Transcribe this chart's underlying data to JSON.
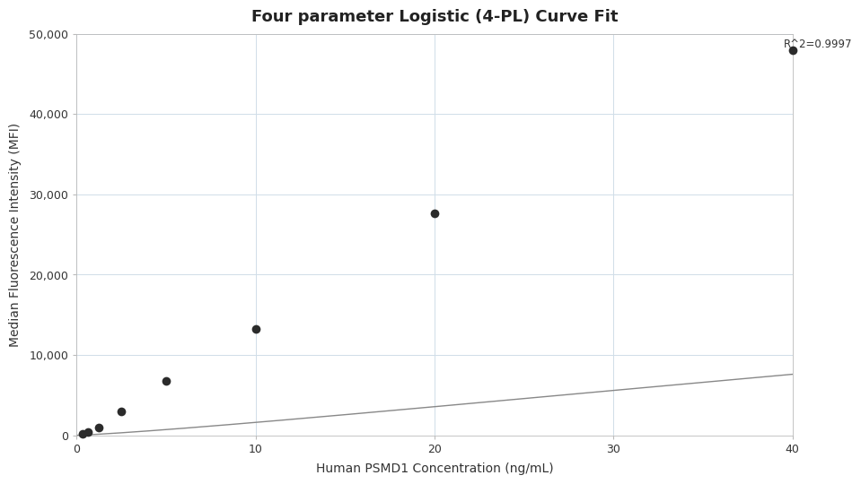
{
  "title": "Four parameter Logistic (4-PL) Curve Fit",
  "xlabel": "Human PSMD1 Concentration (ng/mL)",
  "ylabel": "Median Fluorescence Intensity (MFI)",
  "x_data": [
    0.313,
    0.625,
    1.25,
    2.5,
    5.0,
    10.0,
    20.0,
    40.0
  ],
  "y_data": [
    150,
    450,
    950,
    3000,
    6800,
    13200,
    27600,
    48000
  ],
  "r_squared": "R^2=0.9997",
  "xlim": [
    0,
    40
  ],
  "ylim": [
    0,
    50000
  ],
  "xticks": [
    0,
    10,
    20,
    30,
    40
  ],
  "yticks": [
    0,
    10000,
    20000,
    30000,
    40000,
    50000
  ],
  "marker_color": "#2b2b2b",
  "line_color": "#888888",
  "grid_color": "#d0dde8",
  "background_color": "#ffffff",
  "marker_size": 7,
  "title_fontsize": 13,
  "label_fontsize": 10,
  "tick_fontsize": 9,
  "annotation_fontsize": 8.5
}
